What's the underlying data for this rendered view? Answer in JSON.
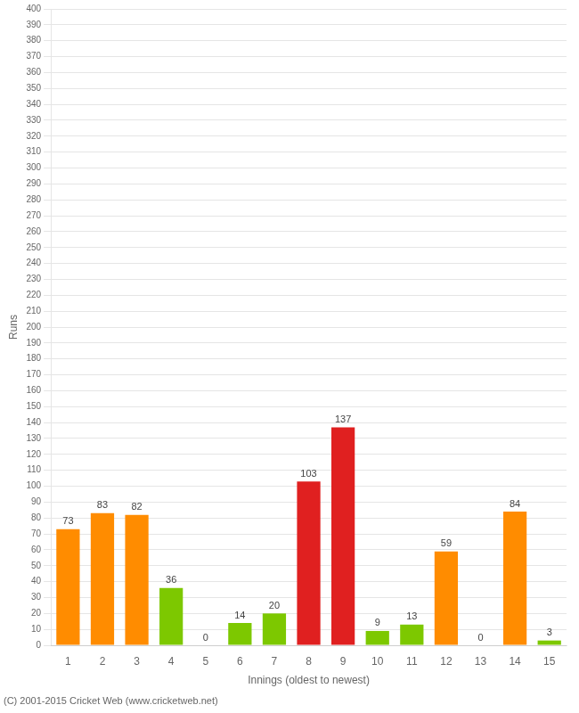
{
  "chart_data": {
    "type": "bar",
    "xlabel": "Innings (oldest to newest)",
    "ylabel": "Runs",
    "categories": [
      1,
      2,
      3,
      4,
      5,
      6,
      7,
      8,
      9,
      10,
      11,
      12,
      13,
      14,
      15
    ],
    "values": [
      73,
      83,
      82,
      36,
      0,
      14,
      20,
      103,
      137,
      9,
      13,
      59,
      0,
      84,
      3
    ],
    "colors": [
      "#ff8c00",
      "#ff8c00",
      "#ff8c00",
      "#7dc800",
      "#7dc800",
      "#7dc800",
      "#7dc800",
      "#e02020",
      "#e02020",
      "#7dc800",
      "#7dc800",
      "#ff8c00",
      "#7dc800",
      "#ff8c00",
      "#7dc800"
    ],
    "ylim": [
      0,
      400
    ],
    "yticks": [
      0,
      10,
      20,
      30,
      40,
      50,
      60,
      70,
      80,
      90,
      100,
      110,
      120,
      130,
      140,
      150,
      160,
      170,
      180,
      190,
      200,
      210,
      220,
      230,
      240,
      250,
      260,
      270,
      280,
      290,
      300,
      310,
      320,
      330,
      340,
      350,
      360,
      370,
      380,
      390,
      400
    ],
    "grid": true,
    "data_labels": true,
    "footer": "(C) 2001-2015 Cricket Web (www.cricketweb.net)"
  }
}
